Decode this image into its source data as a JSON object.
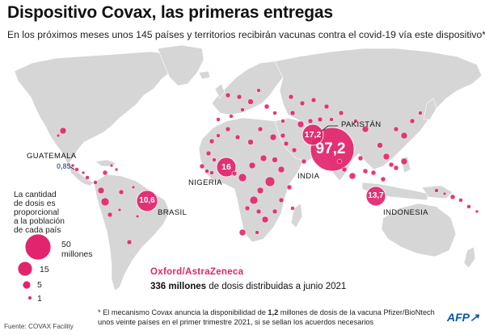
{
  "header": {
    "title": "Dispositivo Covax, las primeras entregas",
    "subtitle": "En los próximos meses unos 145 países y territorios recibirán vacunas contra el covid-19 vía este dispositivo*"
  },
  "colors": {
    "land": "#d6d6d6",
    "bubble": "#e2246c",
    "bubble_stroke": "#ffffff",
    "ocean": "#ffffff"
  },
  "countries": [
    {
      "name": "Pakistán",
      "value": "17,2"
    },
    {
      "name": "India",
      "value": "97,2"
    },
    {
      "name": "Guatemala",
      "value": "0,85"
    },
    {
      "name": "Nigeria",
      "value": "16"
    },
    {
      "name": "Brasil",
      "value": "10,6"
    },
    {
      "name": "Indonesia",
      "value": "13,7"
    }
  ],
  "legend": {
    "title_lines": [
      "La cantidad",
      "de dosis es",
      "proporcional",
      "a la población",
      "de cada país"
    ],
    "items": [
      {
        "label_lines": [
          "50",
          "millones"
        ]
      },
      {
        "label_lines": [
          "15"
        ]
      },
      {
        "label_lines": [
          "5"
        ]
      },
      {
        "label_lines": [
          "1"
        ]
      }
    ]
  },
  "vaccine": {
    "name": "Oxford/AstraZeneca",
    "doses_bold": "336 millones",
    "doses_rest": " de dosis distribuidas a junio 2021"
  },
  "footnote": {
    "line1_pre": "* El mecanismo Covax anuncia la disponibilidad de ",
    "line1_bold": "1,2",
    "line1_post": " millones de dosis de la vacuna Pfizer/BioNtech",
    "line2": "unos veinte países en el primer trimestre 2021, si se sellan los acuerdos necesarios"
  },
  "source": "Fuente: COVAX Facility",
  "brand": "AFP"
}
